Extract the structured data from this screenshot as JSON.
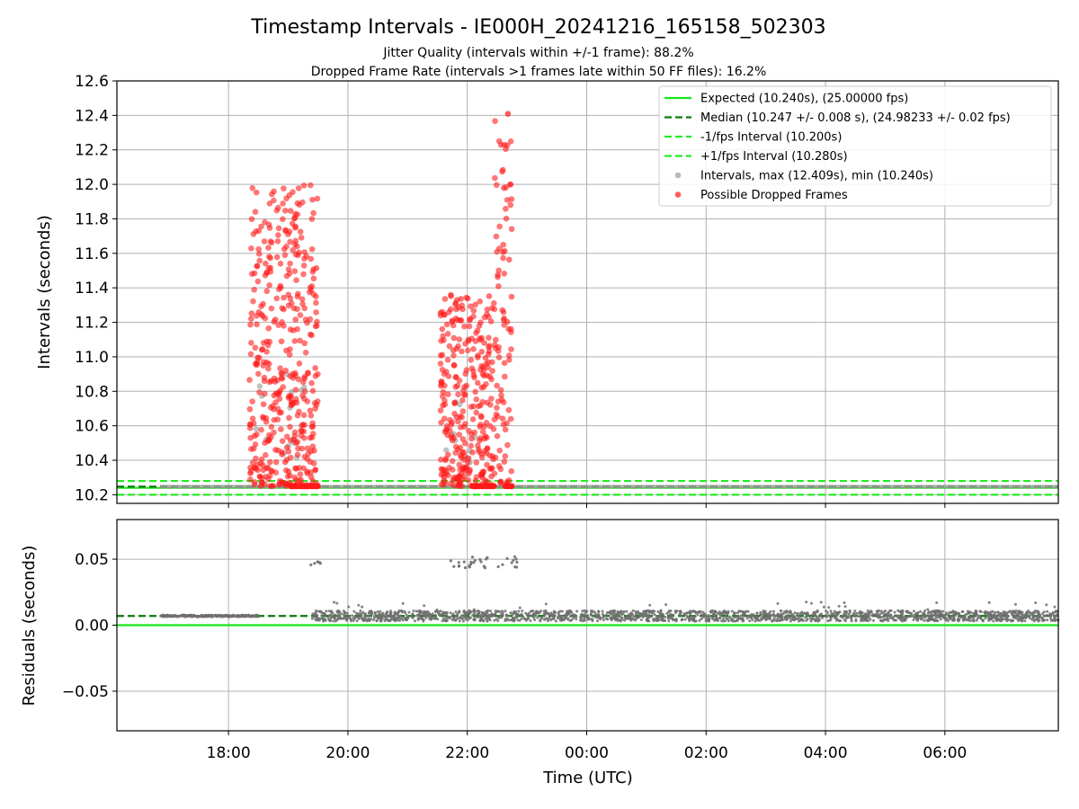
{
  "title": "Timestamp Intervals - IE000H_20241216_165158_502303",
  "subtitle_line1": "Jitter Quality (intervals within +/-1 frame): 88.2%",
  "subtitle_line2": "Dropped Frame Rate (intervals >1 frames late within 50 FF files): 16.2%",
  "colors": {
    "expected": "#19e619",
    "median": "#0a7a0a",
    "interval_band": "#22ee22",
    "intervals": "#9a9a9a",
    "dropped": "#ff1a1a",
    "residuals": "#6e6e6e",
    "grid": "#b0b0b0"
  },
  "chart_data": [
    {
      "type": "scatter",
      "panel": "top",
      "ylabel": "Intervals (seconds)",
      "ylim": [
        10.15,
        12.6
      ],
      "yticks": [
        "10.2",
        "10.4",
        "10.6",
        "10.8",
        "11.0",
        "11.2",
        "11.4",
        "11.6",
        "11.8",
        "12.0",
        "12.2",
        "12.4",
        "12.6"
      ],
      "xlim_hours": [
        16.13,
        31.9
      ],
      "grid": true,
      "legend_position": "upper right",
      "legend": [
        {
          "label": "Expected (10.240s), (25.00000 fps)",
          "kind": "solid-line"
        },
        {
          "label": "Median (10.247 +/- 0.008 s), (24.98233 +/- 0.02 fps)",
          "kind": "dashed-line"
        },
        {
          "label": "-1/fps Interval (10.200s)",
          "kind": "dashed-line"
        },
        {
          "label": "+1/fps Interval (10.280s)",
          "kind": "dashed-line"
        },
        {
          "label": "Intervals, max (12.409s), min (10.240s)",
          "kind": "grey-dot"
        },
        {
          "label": "Possible Dropped Frames",
          "kind": "red-dot"
        }
      ],
      "reference_lines": {
        "expected": 10.24,
        "median": 10.247,
        "minus_one_frame": 10.2,
        "plus_one_frame": 10.28
      },
      "interval_series": {
        "name": "Intervals, max (12.409s), min (10.240s)",
        "x_range_hours": [
          16.85,
          31.9
        ],
        "typical": 10.247,
        "max": 12.409,
        "min": 10.24
      },
      "dropped_clusters": [
        {
          "x_range_hours": [
            18.35,
            19.5
          ],
          "y_range": [
            10.25,
            12.0
          ],
          "count": 420
        },
        {
          "x_range_hours": [
            21.55,
            22.45
          ],
          "y_range": [
            10.25,
            11.36
          ],
          "count": 300
        },
        {
          "x_range_hours": [
            22.45,
            22.75
          ],
          "y_range": [
            10.25,
            12.41
          ],
          "count": 90
        }
      ]
    },
    {
      "type": "scatter",
      "panel": "bottom",
      "xlabel": "Time (UTC)",
      "ylabel": "Residuals (seconds)",
      "ylim": [
        -0.08,
        0.08
      ],
      "yticks": [
        "0.00",
        "0.05",
        "−0.05"
      ],
      "ytick_values": [
        0.0,
        0.05,
        -0.05
      ],
      "xticks": [
        "18:00",
        "20:00",
        "22:00",
        "00:00",
        "02:00",
        "04:00",
        "06:00"
      ],
      "xtick_hours": [
        18,
        20,
        22,
        24,
        26,
        28,
        30
      ],
      "grid": true,
      "reference_lines": {
        "expected": 0.0,
        "median": 0.007
      },
      "residual_series": {
        "x_range_hours": [
          16.85,
          31.9
        ],
        "typical": 0.007,
        "spread": 0.004
      },
      "outlier_clusters": [
        {
          "x_range_hours": [
            19.25,
            19.55
          ],
          "y_range": [
            0.045,
            0.05
          ]
        },
        {
          "x_range_hours": [
            21.7,
            22.85
          ],
          "y_range": [
            0.043,
            0.052
          ]
        }
      ]
    }
  ]
}
